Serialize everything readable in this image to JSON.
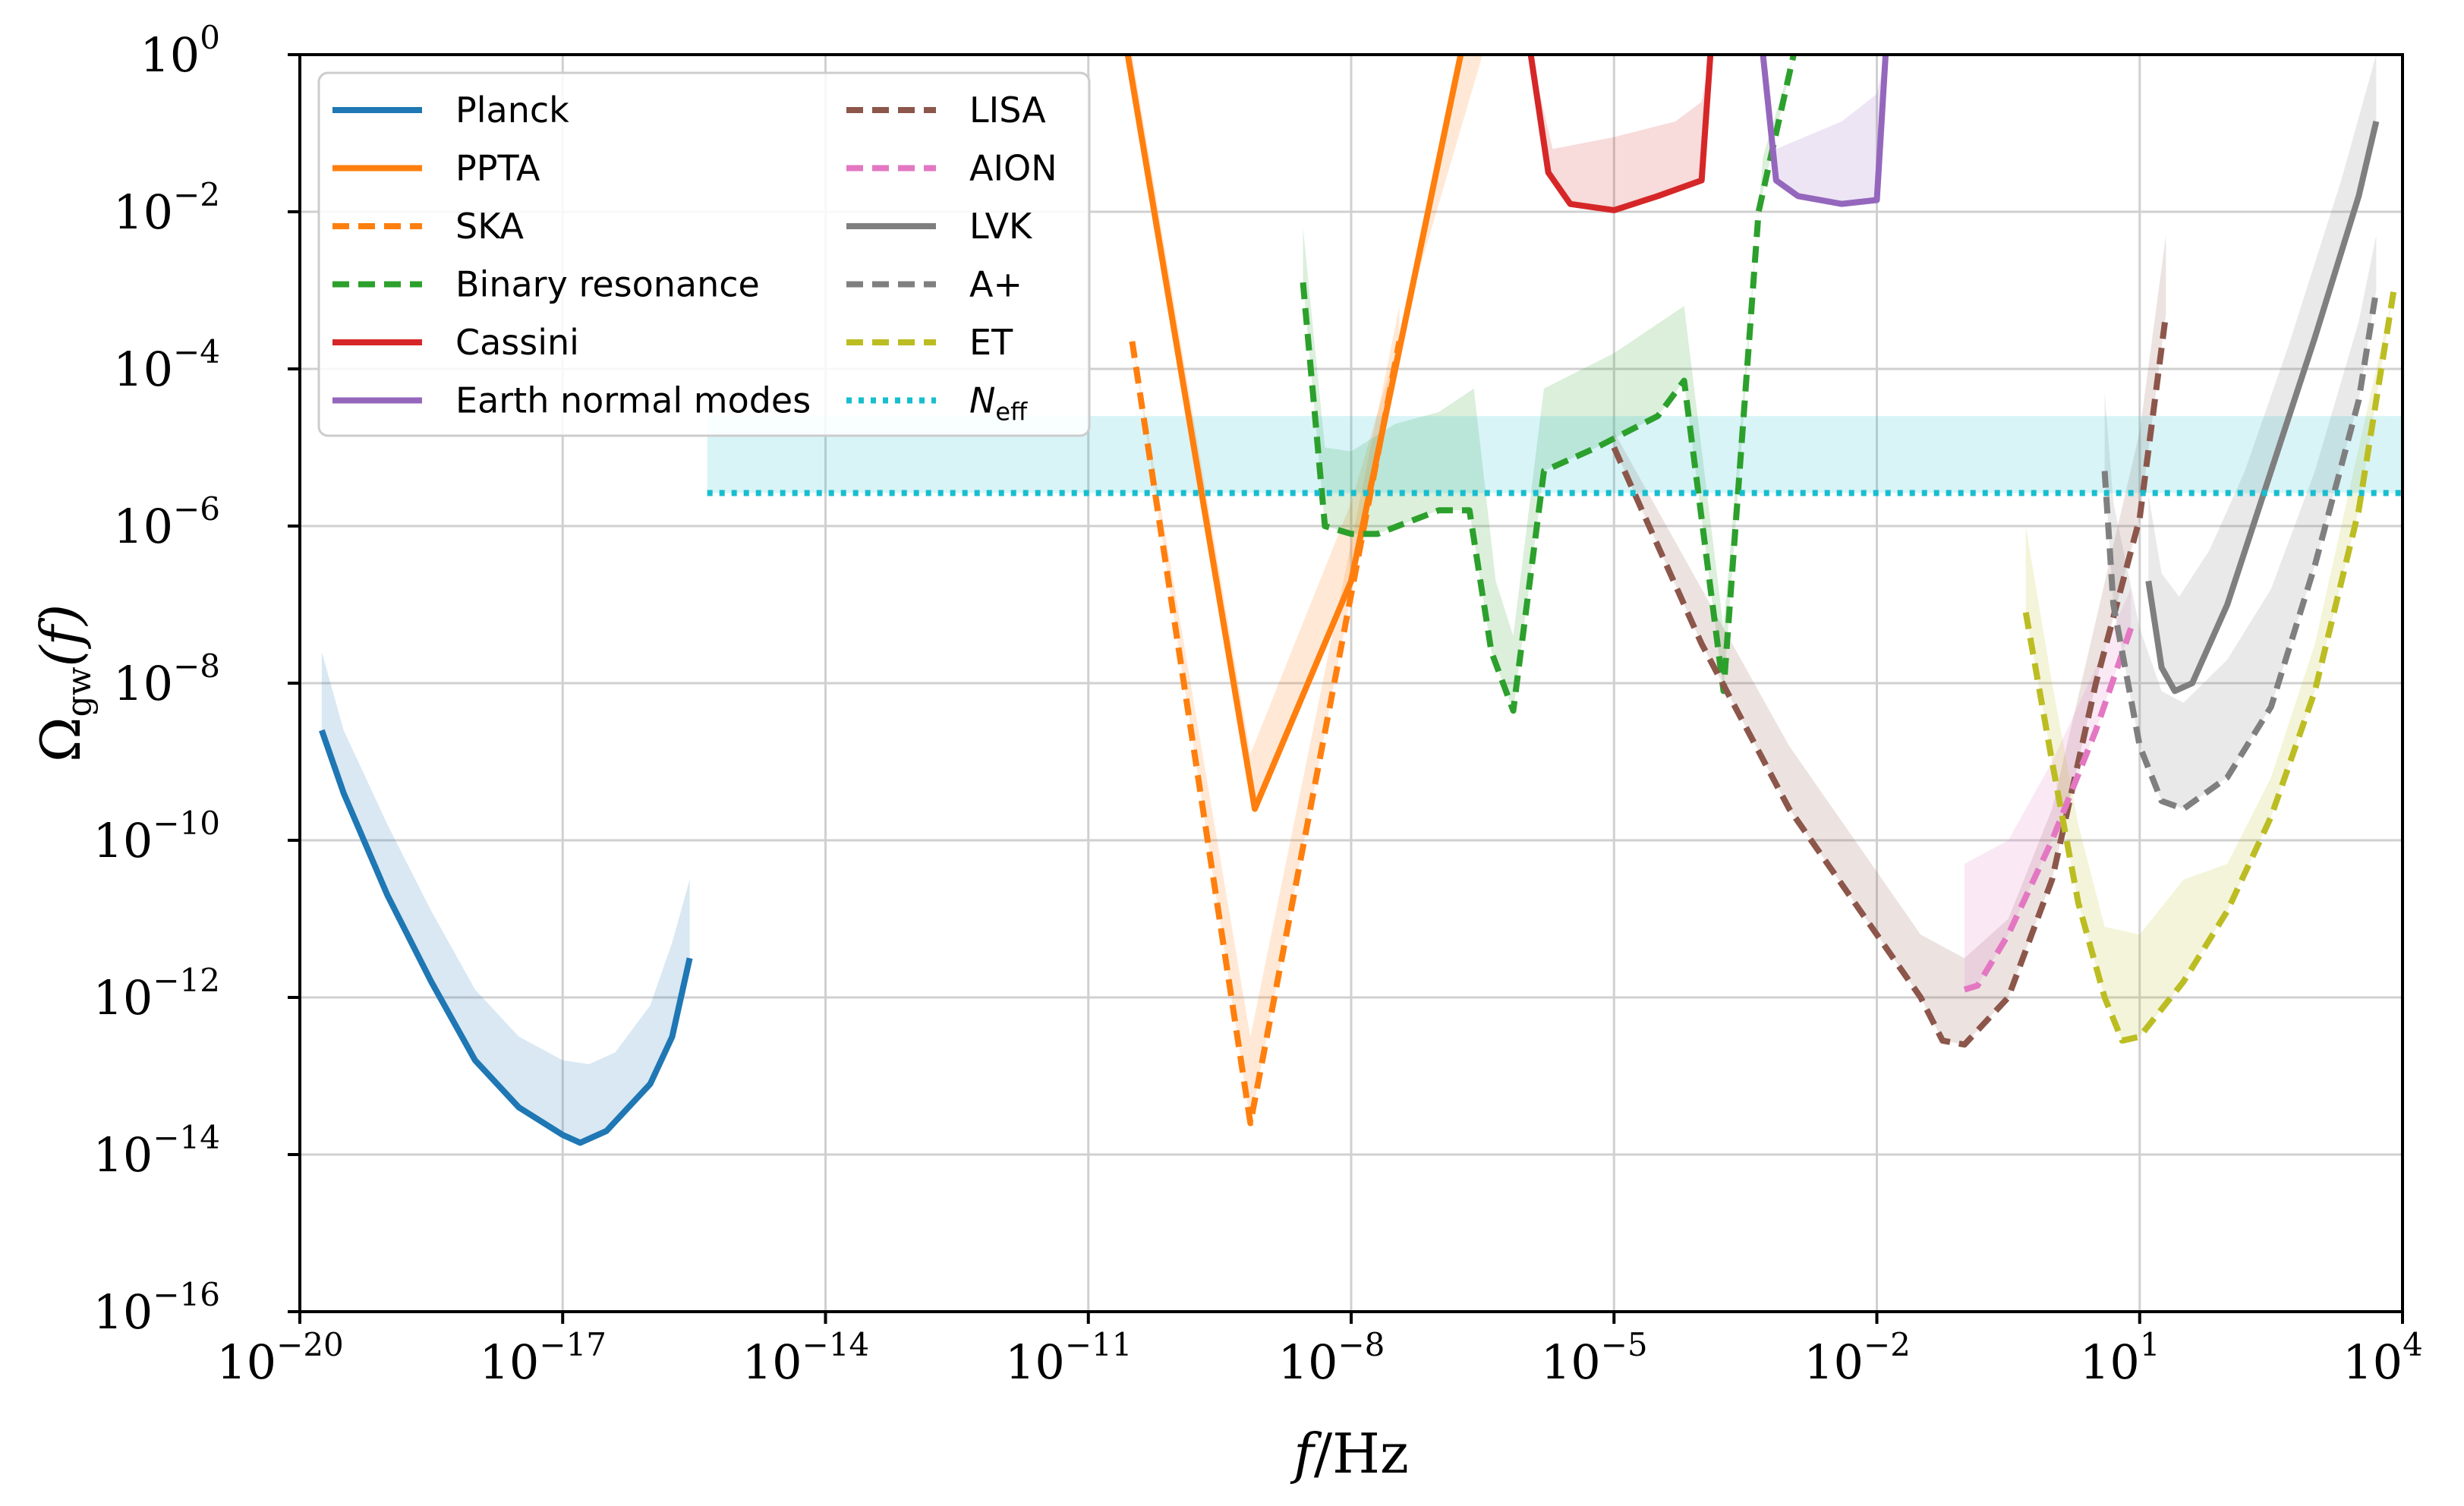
{
  "chart_data": {
    "type": "line",
    "xscale": "log10",
    "yscale": "log10",
    "xlim": [
      -20,
      4
    ],
    "ylim": [
      -16,
      0
    ],
    "xlabel": "f/Hz",
    "ylabel": "Ω_gw(f)",
    "xticks": [
      -20,
      -17,
      -14,
      -11,
      -8,
      -5,
      -2,
      1,
      4
    ],
    "yticks": [
      0,
      -2,
      -4,
      -6,
      -8,
      -10,
      -12,
      -14,
      -16
    ],
    "grid": true,
    "legend_location": "top-left",
    "series": [
      {
        "name": "Planck",
        "color": "#1f77b4",
        "dash": "solid",
        "points": [
          [
            -19.75,
            -8.6
          ],
          [
            -19.5,
            -9.4
          ],
          [
            -19.0,
            -10.7
          ],
          [
            -18.5,
            -11.8
          ],
          [
            -18.0,
            -12.8
          ],
          [
            -17.5,
            -13.4
          ],
          [
            -17.0,
            -13.75
          ],
          [
            -16.8,
            -13.85
          ],
          [
            -16.5,
            -13.7
          ],
          [
            -16.0,
            -13.1
          ],
          [
            -15.75,
            -12.5
          ],
          [
            -15.55,
            -11.5
          ]
        ],
        "band_upper": [
          [
            -19.75,
            -7.6
          ],
          [
            -19.5,
            -8.6
          ],
          [
            -19.0,
            -9.8
          ],
          [
            -18.5,
            -10.9
          ],
          [
            -18.0,
            -11.9
          ],
          [
            -17.5,
            -12.5
          ],
          [
            -17.0,
            -12.8
          ],
          [
            -16.7,
            -12.85
          ],
          [
            -16.4,
            -12.7
          ],
          [
            -16.0,
            -12.1
          ],
          [
            -15.75,
            -11.3
          ],
          [
            -15.55,
            -10.5
          ]
        ]
      },
      {
        "name": "PPTA",
        "color": "#ff7f0e",
        "dash": "solid",
        "points": [
          [
            -10.55,
            0
          ],
          [
            -9.1,
            -9.6
          ],
          [
            -8.0,
            -6.7
          ],
          [
            -6.75,
            0
          ]
        ],
        "band_upper": [
          [
            -10.5,
            0
          ],
          [
            -9.15,
            -8.9
          ],
          [
            -8.0,
            -5.7
          ],
          [
            -6.5,
            0
          ]
        ]
      },
      {
        "name": "SKA",
        "color": "#ff7f0e",
        "dash": "dashed",
        "points": [
          [
            -10.5,
            -3.65
          ],
          [
            -9.15,
            -13.6
          ],
          [
            -7.45,
            -3.65
          ]
        ],
        "band_upper": [
          [
            -10.5,
            -3.6
          ],
          [
            -9.15,
            -12.5
          ],
          [
            -7.45,
            -3.2
          ]
        ]
      },
      {
        "name": "Binary resonance",
        "color": "#2ca02c",
        "dash": "dashed",
        "points": [
          [
            -8.55,
            -2.9
          ],
          [
            -8.3,
            -6.0
          ],
          [
            -8.0,
            -6.1
          ],
          [
            -7.7,
            -6.1
          ],
          [
            -7.0,
            -5.8
          ],
          [
            -6.65,
            -5.8
          ],
          [
            -6.4,
            -7.6
          ],
          [
            -6.15,
            -8.35
          ],
          [
            -5.8,
            -5.3
          ],
          [
            -5.2,
            -5.0
          ],
          [
            -4.5,
            -4.6
          ],
          [
            -4.2,
            -4.15
          ],
          [
            -3.75,
            -8.1
          ],
          [
            -3.35,
            -2.0
          ],
          [
            -2.95,
            0
          ]
        ],
        "band_upper": [
          [
            -8.55,
            -2.2
          ],
          [
            -8.3,
            -5.0
          ],
          [
            -8.0,
            -5.05
          ],
          [
            -7.5,
            -4.7
          ],
          [
            -7.0,
            -4.55
          ],
          [
            -6.6,
            -4.25
          ],
          [
            -6.35,
            -6.7
          ],
          [
            -6.15,
            -7.4
          ],
          [
            -5.8,
            -4.25
          ],
          [
            -5.0,
            -3.8
          ],
          [
            -4.2,
            -3.2
          ],
          [
            -3.75,
            -7.3
          ],
          [
            -3.3,
            -1.3
          ],
          [
            -2.95,
            0
          ]
        ]
      },
      {
        "name": "Cassini",
        "color": "#d62728",
        "dash": "solid",
        "points": [
          [
            -5.95,
            0
          ],
          [
            -5.75,
            -1.5
          ],
          [
            -5.5,
            -1.9
          ],
          [
            -5.0,
            -1.98
          ],
          [
            -4.5,
            -1.8
          ],
          [
            -4.0,
            -1.6
          ],
          [
            -3.9,
            0
          ]
        ],
        "band_upper": [
          [
            -5.95,
            0
          ],
          [
            -5.7,
            -1.2
          ],
          [
            -5.0,
            -1.05
          ],
          [
            -4.3,
            -0.85
          ],
          [
            -4.0,
            -0.6
          ],
          [
            -3.9,
            0
          ]
        ]
      },
      {
        "name": "Earth normal modes",
        "color": "#9467bd",
        "dash": "solid",
        "points": [
          [
            -3.3,
            0
          ],
          [
            -3.15,
            -1.6
          ],
          [
            -2.9,
            -1.8
          ],
          [
            -2.4,
            -1.9
          ],
          [
            -2.0,
            -1.85
          ],
          [
            -1.9,
            0
          ]
        ],
        "band_upper": [
          [
            -3.3,
            0
          ],
          [
            -3.15,
            -1.2
          ],
          [
            -2.4,
            -0.85
          ],
          [
            -2.0,
            -0.5
          ],
          [
            -1.9,
            0
          ]
        ]
      },
      {
        "name": "LISA",
        "color": "#8c564b",
        "dash": "dashed",
        "points": [
          [
            -5.0,
            -5.0
          ],
          [
            -4.0,
            -7.5
          ],
          [
            -3.0,
            -9.6
          ],
          [
            -2.0,
            -11.2
          ],
          [
            -1.5,
            -12.0
          ],
          [
            -1.25,
            -12.55
          ],
          [
            -1.0,
            -12.6
          ],
          [
            -0.5,
            -12.0
          ],
          [
            0.0,
            -10.5
          ],
          [
            0.5,
            -8.0
          ],
          [
            1.0,
            -5.9
          ],
          [
            1.3,
            -3.3
          ]
        ],
        "band_upper": [
          [
            -5.0,
            -4.8
          ],
          [
            -4.0,
            -6.8
          ],
          [
            -3.0,
            -8.8
          ],
          [
            -2.0,
            -10.4
          ],
          [
            -1.5,
            -11.2
          ],
          [
            -1.0,
            -11.5
          ],
          [
            -0.5,
            -11.0
          ],
          [
            0.0,
            -9.6
          ],
          [
            0.5,
            -7.2
          ],
          [
            1.0,
            -4.8
          ],
          [
            1.3,
            -2.3
          ]
        ]
      },
      {
        "name": "AION",
        "color": "#e377c2",
        "dash": "dashed",
        "points": [
          [
            -1.0,
            -11.9
          ],
          [
            -0.85,
            -11.85
          ],
          [
            -0.5,
            -11.2
          ],
          [
            0.0,
            -10.0
          ],
          [
            0.5,
            -8.6
          ],
          [
            0.9,
            -7.3
          ]
        ],
        "band_upper": [
          [
            -1.0,
            -10.3
          ],
          [
            -0.5,
            -10.0
          ],
          [
            0.0,
            -9.0
          ],
          [
            0.5,
            -7.8
          ],
          [
            0.9,
            -6.8
          ]
        ]
      },
      {
        "name": "LVK",
        "color": "#7f7f7f",
        "dash": "solid",
        "points": [
          [
            1.1,
            -6.7
          ],
          [
            1.25,
            -7.8
          ],
          [
            1.4,
            -8.1
          ],
          [
            1.6,
            -8.0
          ],
          [
            2.0,
            -7.0
          ],
          [
            2.5,
            -5.3
          ],
          [
            3.0,
            -3.6
          ],
          [
            3.5,
            -1.8
          ],
          [
            3.7,
            -0.85
          ]
        ],
        "band_upper": [
          [
            1.1,
            -5.6
          ],
          [
            1.25,
            -6.6
          ],
          [
            1.45,
            -6.9
          ],
          [
            1.8,
            -6.3
          ],
          [
            2.2,
            -5.3
          ],
          [
            2.7,
            -3.7
          ],
          [
            3.3,
            -1.6
          ],
          [
            3.7,
            0
          ]
        ]
      },
      {
        "name": "A+",
        "color": "#7f7f7f",
        "dash": "dashed",
        "points": [
          [
            0.6,
            -5.3
          ],
          [
            0.7,
            -7.0
          ],
          [
            1.0,
            -8.8
          ],
          [
            1.25,
            -9.5
          ],
          [
            1.5,
            -9.6
          ],
          [
            2.0,
            -9.2
          ],
          [
            2.5,
            -8.3
          ],
          [
            3.0,
            -6.5
          ],
          [
            3.5,
            -4.4
          ],
          [
            3.7,
            -3.0
          ]
        ],
        "band_upper": [
          [
            0.6,
            -4.3
          ],
          [
            0.7,
            -5.7
          ],
          [
            1.0,
            -7.3
          ],
          [
            1.25,
            -8.1
          ],
          [
            1.5,
            -8.25
          ],
          [
            2.0,
            -7.7
          ],
          [
            2.5,
            -6.8
          ],
          [
            3.0,
            -5.3
          ],
          [
            3.5,
            -3.4
          ],
          [
            3.7,
            -2.3
          ]
        ]
      },
      {
        "name": "ET",
        "color": "#bcbd22",
        "dash": "dashed",
        "points": [
          [
            -0.3,
            -7.1
          ],
          [
            0.0,
            -9.0
          ],
          [
            0.3,
            -10.8
          ],
          [
            0.6,
            -12.0
          ],
          [
            0.8,
            -12.55
          ],
          [
            1.0,
            -12.5
          ],
          [
            1.5,
            -11.8
          ],
          [
            2.0,
            -10.9
          ],
          [
            2.5,
            -9.7
          ],
          [
            3.0,
            -8.1
          ],
          [
            3.5,
            -5.8
          ],
          [
            3.9,
            -3.0
          ]
        ],
        "band_upper": [
          [
            -0.3,
            -6.0
          ],
          [
            0.0,
            -8.0
          ],
          [
            0.3,
            -9.8
          ],
          [
            0.6,
            -11.1
          ],
          [
            1.0,
            -11.2
          ],
          [
            1.5,
            -10.5
          ],
          [
            2.0,
            -10.3
          ],
          [
            2.5,
            -9.2
          ],
          [
            3.0,
            -7.5
          ],
          [
            3.5,
            -5.0
          ],
          [
            4.0,
            -2.5
          ]
        ]
      },
      {
        "name": "N_eff",
        "color": "#17becf",
        "dash": "dotted",
        "points": [
          [
            -15.35,
            -5.58
          ],
          [
            4.0,
            -5.58
          ]
        ],
        "band_upper": [
          [
            -15.35,
            -4.6
          ],
          [
            4.0,
            -4.6
          ]
        ]
      }
    ]
  },
  "axis_text": {
    "x_base": "10",
    "x_exponents": [
      "−20",
      "−17",
      "−14",
      "−11",
      "−8",
      "−5",
      "−2",
      "1",
      "4"
    ],
    "y_base": "10",
    "y_exponents": [
      "0",
      "−2",
      "−4",
      "−6",
      "−8",
      "−10",
      "−12",
      "−14",
      "−16"
    ],
    "xlabel_f": "f",
    "xlabel_unit": "/Hz",
    "ylabel_omega": "Ω",
    "ylabel_sub": "gw",
    "ylabel_arg": "(f)"
  },
  "legend": {
    "left": [
      {
        "label": "Planck",
        "color": "#1f77b4",
        "dash": "solid"
      },
      {
        "label": "PPTA",
        "color": "#ff7f0e",
        "dash": "solid"
      },
      {
        "label": "SKA",
        "color": "#ff7f0e",
        "dash": "dashed"
      },
      {
        "label": "Binary resonance",
        "color": "#2ca02c",
        "dash": "dashed"
      },
      {
        "label": "Cassini",
        "color": "#d62728",
        "dash": "solid"
      },
      {
        "label": "Earth normal modes",
        "color": "#9467bd",
        "dash": "solid"
      }
    ],
    "right": [
      {
        "label": "LISA",
        "color": "#8c564b",
        "dash": "dashed"
      },
      {
        "label": "AION",
        "color": "#e377c2",
        "dash": "dashed"
      },
      {
        "label": "LVK",
        "color": "#7f7f7f",
        "dash": "solid"
      },
      {
        "label": "A+",
        "color": "#7f7f7f",
        "dash": "dashed"
      },
      {
        "label": "ET",
        "color": "#bcbd22",
        "dash": "dashed"
      },
      {
        "label": "N",
        "sub": "eff",
        "color": "#17becf",
        "dash": "dotted"
      }
    ]
  }
}
